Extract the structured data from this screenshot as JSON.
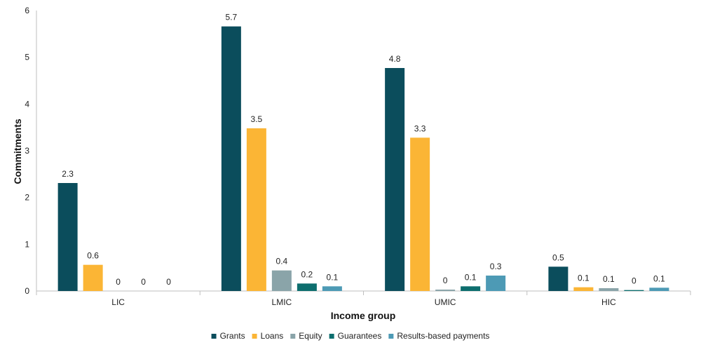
{
  "chart_data": {
    "type": "bar",
    "title": "",
    "xlabel": "Income group",
    "ylabel": "Commitments",
    "ylim": [
      0,
      6
    ],
    "yticks": [
      0,
      1,
      2,
      3,
      4,
      5,
      6
    ],
    "grid": false,
    "legend_position": "bottom",
    "categories": [
      "LIC",
      "LMIC",
      "UMIC",
      "HIC"
    ],
    "series": [
      {
        "name": "Grants",
        "color": "#0b4d5c",
        "values": [
          2.31,
          5.66,
          4.77,
          0.52
        ],
        "labels": [
          "2.3",
          "5.7",
          "4.8",
          "0.5"
        ]
      },
      {
        "name": "Loans",
        "color": "#fbb535",
        "values": [
          0.56,
          3.48,
          3.28,
          0.08
        ],
        "labels": [
          "0.6",
          "3.5",
          "3.3",
          "0.1"
        ]
      },
      {
        "name": "Equity",
        "color": "#8aa4a9",
        "values": [
          0,
          0.44,
          0.03,
          0.06
        ],
        "labels": [
          "0",
          "0.4",
          "0",
          "0.1"
        ]
      },
      {
        "name": "Guarantees",
        "color": "#0d6e6e",
        "values": [
          0,
          0.16,
          0.1,
          0.02
        ],
        "labels": [
          "0",
          "0.2",
          "0.1",
          "0"
        ]
      },
      {
        "name": "Results-based payments",
        "color": "#4d9ab5",
        "values": [
          0,
          0.1,
          0.33,
          0.07
        ],
        "labels": [
          "0",
          "0.1",
          "0.3",
          "0.1"
        ]
      }
    ]
  }
}
